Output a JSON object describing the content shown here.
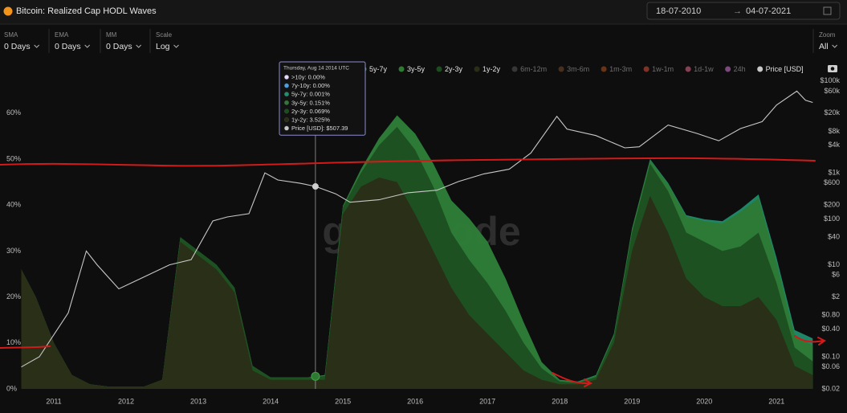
{
  "header": {
    "date_from": "18-07-2010",
    "date_separator": "→",
    "date_to": "04-07-2021"
  },
  "controls": [
    {
      "label": "SMA",
      "value": "0 Days"
    },
    {
      "label": "EMA",
      "value": "0 Days"
    },
    {
      "label": "MM",
      "value": "0 Days"
    },
    {
      "label": "Scale",
      "value": "Log"
    },
    {
      "label": "Zoom",
      "value": "All"
    }
  ],
  "chart_data": {
    "type": "area",
    "title": "Bitcoin: Realized Cap HODL Waves",
    "watermark": "glassnode",
    "x": [
      2010.55,
      2010.75,
      2011.0,
      2011.25,
      2011.5,
      2011.75,
      2012.0,
      2012.25,
      2012.5,
      2012.75,
      2013.0,
      2013.25,
      2013.5,
      2013.75,
      2014.0,
      2014.25,
      2014.5,
      2014.75,
      2015.0,
      2015.25,
      2015.5,
      2015.75,
      2016.0,
      2016.25,
      2016.5,
      2016.75,
      2017.0,
      2017.25,
      2017.5,
      2017.75,
      2018.0,
      2018.25,
      2018.5,
      2018.75,
      2019.0,
      2019.25,
      2019.5,
      2019.75,
      2020.0,
      2020.25,
      2020.5,
      2020.75,
      2021.0,
      2021.25,
      2021.5
    ],
    "xlim": [
      2010.5,
      2021.53
    ],
    "xticks": [
      2011,
      2012,
      2013,
      2014,
      2015,
      2016,
      2017,
      2018,
      2019,
      2020,
      2021
    ],
    "ylim": [
      0,
      68
    ],
    "yticks": [
      {
        "value": 0,
        "label": "0%"
      },
      {
        "value": 10,
        "label": "10%"
      },
      {
        "value": 20,
        "label": "20%"
      },
      {
        "value": 30,
        "label": "30%"
      },
      {
        "value": 40,
        "label": "40%"
      },
      {
        "value": 50,
        "label": "50%"
      },
      {
        "value": 60,
        "label": "60%"
      }
    ],
    "y2lim": [
      0.02,
      126000
    ],
    "y2scale": "log",
    "y2ticks": [
      {
        "value": 100000,
        "label": "$100k"
      },
      {
        "value": 60000,
        "label": "$60k"
      },
      {
        "value": 20000,
        "label": "$20k"
      },
      {
        "value": 8000,
        "label": "$8k"
      },
      {
        "value": 4000,
        "label": "$4k"
      },
      {
        "value": 1000,
        "label": "$1k"
      },
      {
        "value": 600,
        "label": "$600"
      },
      {
        "value": 200,
        "label": "$200"
      },
      {
        "value": 100,
        "label": "$100"
      },
      {
        "value": 40,
        "label": "$40"
      },
      {
        "value": 10,
        "label": "$10"
      },
      {
        "value": 6,
        "label": "$6"
      },
      {
        "value": 2,
        "label": "$2"
      },
      {
        "value": 0.8,
        "label": "$0.80"
      },
      {
        "value": 0.4,
        "label": "$0.40"
      },
      {
        "value": 0.1,
        "label": "$0.10"
      },
      {
        "value": 0.06,
        "label": "$0.06"
      },
      {
        "value": 0.02,
        "label": "$0.02"
      }
    ],
    "grid": false,
    "stacked": true,
    "series": [
      {
        "name": "5y-7y",
        "color": "#1f8f6e",
        "values": [
          0,
          0,
          0,
          0,
          0,
          0,
          0,
          0,
          0,
          0,
          0,
          0,
          0,
          0,
          0,
          0,
          0,
          0,
          0,
          0,
          0,
          0,
          0,
          0,
          0,
          0,
          0,
          0,
          0,
          0,
          0.1,
          0.1,
          0.1,
          0.1,
          0.1,
          0.2,
          0.3,
          0.3,
          0.4,
          0.5,
          0.6,
          0.8,
          1,
          1.2,
          1.5
        ]
      },
      {
        "name": "3y-5y",
        "color": "#2f7a33",
        "values": [
          0,
          0,
          0,
          0,
          0,
          0,
          0,
          0,
          0,
          0,
          0,
          0,
          0,
          0,
          0,
          0,
          0,
          0.2,
          0.3,
          0.8,
          1.5,
          2.5,
          3.5,
          5,
          7,
          9,
          9,
          7,
          4.5,
          1.3,
          0.3,
          0.2,
          0.3,
          0.4,
          0.8,
          0.8,
          1.5,
          3.5,
          4.5,
          6,
          7.5,
          7.5,
          4.5,
          2.6,
          3.5
        ]
      },
      {
        "name": "2y-3y",
        "color": "#1d4d1f",
        "values": [
          0,
          0,
          0,
          0,
          0,
          0,
          0,
          0,
          0,
          1,
          1,
          1,
          1,
          1,
          0.5,
          0.5,
          0.5,
          0.8,
          1.5,
          3,
          7,
          12,
          14,
          14,
          12,
          12,
          11,
          9,
          6,
          2.5,
          0.6,
          0.3,
          0.6,
          1.5,
          4,
          7,
          9,
          10,
          12,
          12,
          13,
          14,
          8,
          4,
          3
        ]
      },
      {
        "name": "1y-2y",
        "color": "#2b2d17",
        "values": [
          26,
          20,
          10,
          3,
          1,
          0.5,
          0.5,
          0.5,
          2,
          32,
          29,
          26,
          21,
          4,
          2,
          2,
          2,
          2,
          38,
          44,
          46,
          45,
          38,
          30,
          22,
          16,
          12,
          8,
          4,
          2,
          1,
          1,
          2,
          10,
          30,
          42,
          34,
          24,
          20,
          18,
          18,
          20,
          15,
          5,
          3
        ]
      },
      {
        "name": "Price [USD]",
        "color": "#c8c8c8",
        "axis": "y2",
        "x": [
          2010.55,
          2010.8,
          2011.0,
          2011.2,
          2011.45,
          2011.6,
          2011.9,
          2012.2,
          2012.6,
          2012.9,
          2013.2,
          2013.4,
          2013.7,
          2013.92,
          2014.1,
          2014.4,
          2014.62,
          2014.9,
          2015.1,
          2015.5,
          2015.9,
          2016.3,
          2016.6,
          2016.95,
          2017.3,
          2017.6,
          2017.96,
          2018.1,
          2018.5,
          2018.9,
          2019.1,
          2019.5,
          2019.9,
          2020.2,
          2020.5,
          2020.8,
          2021.0,
          2021.28,
          2021.4,
          2021.5
        ],
        "values": [
          0.06,
          0.1,
          0.3,
          0.9,
          20,
          10,
          3,
          5,
          10,
          13,
          90,
          110,
          130,
          1000,
          700,
          600,
          507.39,
          350,
          230,
          260,
          370,
          420,
          650,
          950,
          1200,
          2700,
          17000,
          9000,
          6500,
          3500,
          3700,
          11000,
          7200,
          5000,
          9200,
          13000,
          30000,
          60000,
          38000,
          34000
        ]
      }
    ],
    "legend_inactive": [
      {
        "name": "6m-12m",
        "color": "#5a5a5a"
      },
      {
        "name": "3m-6m",
        "color": "#7a4a2a"
      },
      {
        "name": "1m-3m",
        "color": "#b4521e"
      },
      {
        "name": "1w-1m",
        "color": "#e0513a"
      },
      {
        "name": "1d-1w",
        "color": "#e86a8a"
      },
      {
        "name": "24h",
        "color": "#d77ad8"
      }
    ],
    "tooltip": {
      "x": 2014.62,
      "title": "Thursday, Aug 14 2014 UTC",
      "rows": [
        {
          "text": ">10y: 0.00%",
          "color": "#e6d8ff"
        },
        {
          "text": "7y-10y: 0.00%",
          "color": "#4aa0e0"
        },
        {
          "text": "5y-7y: 0.001%",
          "color": "#1f8f6e"
        },
        {
          "text": "3y-5y: 0.151%",
          "color": "#2f7a33"
        },
        {
          "text": "2y-3y: 0.069%",
          "color": "#1d4d1f"
        },
        {
          "text": "1y-2y: 3.525%",
          "color": "#2b2d17"
        },
        {
          "text": "Price [USD]: $507.39",
          "color": "#c8c8c8"
        }
      ]
    }
  }
}
